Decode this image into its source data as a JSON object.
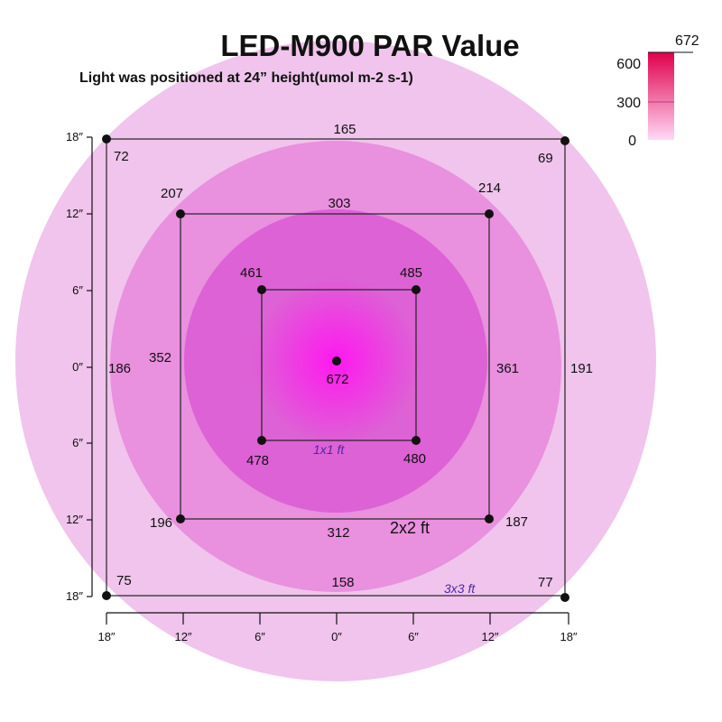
{
  "title": "LED-M900 PAR Value",
  "subtitle": "Light was positioned at 24”  height(umol m-2 s-1)",
  "legend": {
    "max": "672",
    "ticks": [
      "600",
      "300",
      "0"
    ]
  },
  "colors": {
    "outer_zone": "#f0c4ec",
    "mid_zone": "#e990de",
    "inner_zone": "#dd62d5",
    "center_hot": "#ff18f0",
    "legend_top": "#e0004a",
    "legend_bottom": "#ffd8f6"
  },
  "center_value": "672",
  "squares": [
    {
      "name": "3x3",
      "label": "3x3 ft",
      "corners": {
        "tl": "72",
        "tr": "69",
        "bl": "75",
        "br": "77"
      },
      "edges": {
        "top": "165",
        "bottom": "158",
        "left": "186",
        "right": "191"
      }
    },
    {
      "name": "2x2",
      "label": "2x2 ft",
      "corners": {
        "tl": "207",
        "tr": "214",
        "bl": "196",
        "br": "187"
      },
      "edges": {
        "top": "303",
        "bottom": "312",
        "left": "352",
        "right": "361"
      }
    },
    {
      "name": "1x1",
      "label": "1x1 ft",
      "corners": {
        "tl": "461",
        "tr": "485",
        "bl": "478",
        "br": "480"
      }
    }
  ],
  "y_ticks": [
    "18″",
    "12″",
    "6″",
    "0″",
    "6″",
    "12″",
    "18″"
  ],
  "x_ticks": [
    "18″",
    "12″",
    "6″",
    "0″",
    "6″",
    "12″",
    "18″"
  ]
}
